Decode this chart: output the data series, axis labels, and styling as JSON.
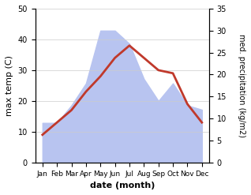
{
  "months": [
    "Jan",
    "Feb",
    "Mar",
    "Apr",
    "May",
    "Jun",
    "Jul",
    "Aug",
    "Sep",
    "Oct",
    "Nov",
    "Dec"
  ],
  "temperature": [
    9,
    13,
    17,
    23,
    28,
    34,
    38,
    34,
    30,
    29,
    19,
    13
  ],
  "precipitation": [
    9,
    9,
    13,
    18,
    30,
    30,
    27,
    19,
    14,
    18,
    13,
    12
  ],
  "temp_color": "#c0392b",
  "precip_fill_color": "#b8c4f0",
  "xlabel": "date (month)",
  "ylabel_left": "max temp (C)",
  "ylabel_right": "med. precipitation (kg/m2)",
  "ylim_left": [
    0,
    50
  ],
  "ylim_right": [
    0,
    35
  ],
  "yticks_left": [
    0,
    10,
    20,
    30,
    40,
    50
  ],
  "yticks_right": [
    0,
    5,
    10,
    15,
    20,
    25,
    30,
    35
  ],
  "bg_color": "#ffffff",
  "line_width": 2.0
}
